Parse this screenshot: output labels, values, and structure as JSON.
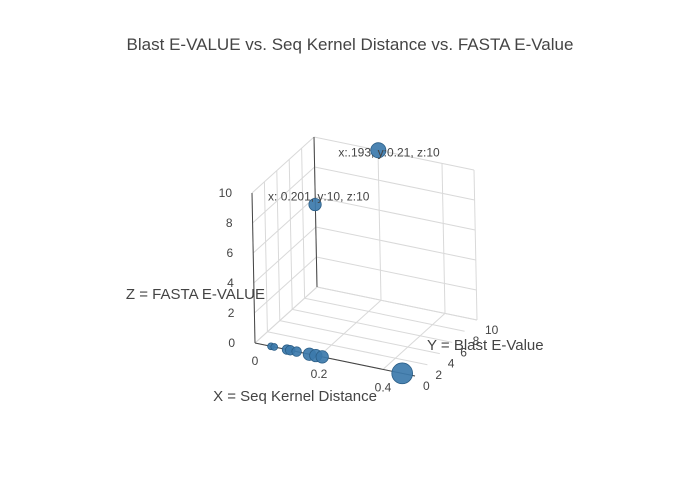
{
  "chart_data": {
    "type": "scatter3d",
    "title": "Blast E-VALUE vs. Seq Kernel Distance vs. FASTA E-Value",
    "xlabel": "X = Seq Kernel Distance",
    "ylabel": "Y = Blast E-Value",
    "zlabel": "Z = FASTA E-VALUE",
    "x_ticks": [
      "0",
      "0.2",
      "0.4"
    ],
    "y_ticks": [
      "0",
      "2",
      "4",
      "6",
      "8",
      "10"
    ],
    "z_ticks": [
      "0",
      "2",
      "4",
      "6",
      "8",
      "10"
    ],
    "xlim": [
      0,
      0.5
    ],
    "ylim": [
      0,
      10
    ],
    "zlim": [
      0,
      10
    ],
    "grid": true,
    "marker_color": "#3c7aab",
    "points": [
      {
        "x": 0.05,
        "y": 0,
        "z": 0,
        "size": 1
      },
      {
        "x": 0.06,
        "y": 0,
        "z": 0,
        "size": 1
      },
      {
        "x": 0.1,
        "y": 0,
        "z": 0,
        "size": 2
      },
      {
        "x": 0.11,
        "y": 0,
        "z": 0,
        "size": 2
      },
      {
        "x": 0.13,
        "y": 0,
        "z": 0,
        "size": 2
      },
      {
        "x": 0.17,
        "y": 0,
        "z": 0,
        "size": 3
      },
      {
        "x": 0.19,
        "y": 0,
        "z": 0,
        "size": 3
      },
      {
        "x": 0.21,
        "y": 0,
        "z": 0,
        "size": 3
      },
      {
        "x": 0.46,
        "y": 0,
        "z": 0,
        "size": 6
      },
      {
        "x": 0.193,
        "y": 0.21,
        "z": 10,
        "size": 3
      },
      {
        "x": 0.201,
        "y": 10,
        "z": 10,
        "size": 4
      }
    ],
    "annotations": [
      {
        "text": "x: 0.201, y:10, z:10"
      },
      {
        "text": "x:.193, y:0.21, z:10"
      }
    ]
  }
}
